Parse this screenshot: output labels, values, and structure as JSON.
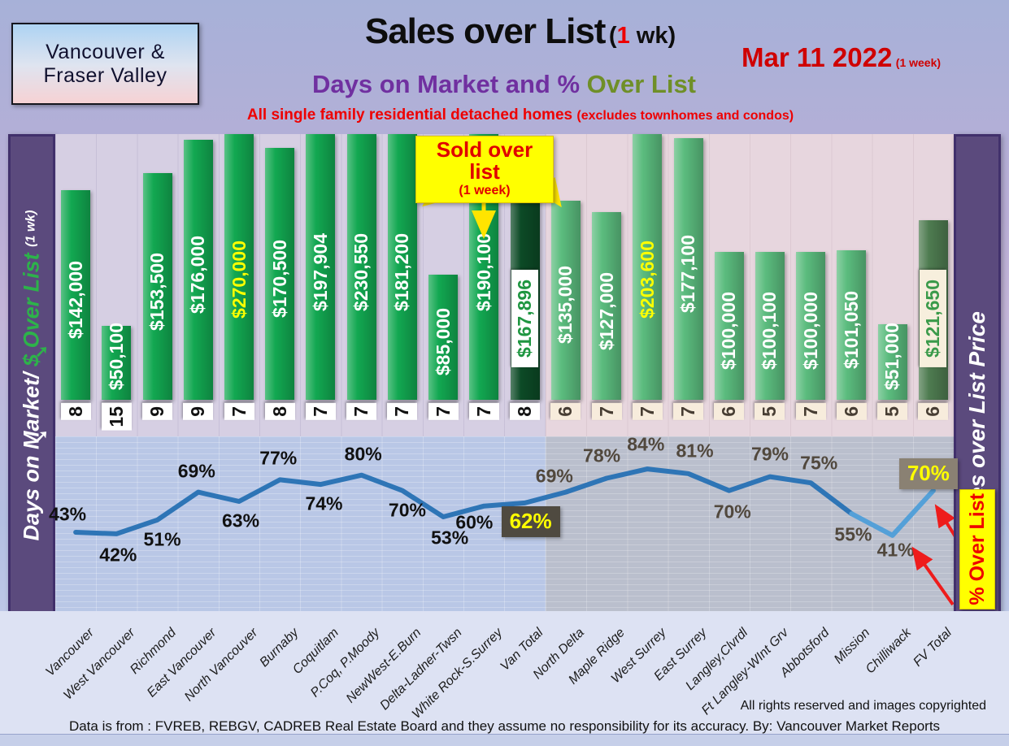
{
  "header": {
    "region_badge": {
      "line1": "Vancouver &",
      "line2": "Fraser Valley"
    },
    "title": {
      "main": "Sales over List",
      "paren_open": "(",
      "red_num": "1",
      "paren_rest": " wk)"
    },
    "date": {
      "main": "Mar 11  2022",
      "note": "(1 week)"
    },
    "subtitle": {
      "purple": "Days on Market and % ",
      "olive": "Over List"
    },
    "tagline": {
      "main": "All single family residential detached homes ",
      "note": "(excludes townhomes and condos)"
    }
  },
  "left_axis": {
    "label_white": "Days on Market/ ",
    "label_green": "$ Over List ",
    "label_note": "(1 wk)"
  },
  "right_axis": {
    "label": "Sales over List Price",
    "pct_box": "% Over List"
  },
  "callout": {
    "line1": "Sold over list",
    "line2": "(1 week)"
  },
  "footer": {
    "rights": "All rights reserved and  images copyrighted",
    "source": "Data is from : FVREB, REBGV, CADREB Real Estate Board and they assume no responsibility for its accuracy. By: Vancouver Market Reports"
  },
  "chart_data": {
    "type": "bar",
    "title": "Sales over List (1 wk) - Days on Market and % Over List",
    "categories": [
      "Vancouver",
      "West Vancouver",
      "Richmond",
      "East Vancouver",
      "North Vancouver",
      "Burnaby",
      "Coquitlam",
      "P.Coq, P.Moody",
      "NewWest-E.Burn",
      "Delta-Ladner-Twsn",
      "White Rock-S.Surrey",
      "Van Total",
      "North Delta",
      "Maple Ridge",
      "West Surrey",
      "East Surrey",
      "Langley,Clvrdl",
      "Ft Langley-WInt Grv",
      "Abbotsford",
      "Mission",
      "Chilliwack",
      "FV Total"
    ],
    "series": [
      {
        "name": "$ Over List (1 wk)",
        "type": "bar",
        "values": [
          142000,
          50100,
          153500,
          176000,
          270000,
          170500,
          197904,
          230550,
          181200,
          85000,
          190100,
          167896,
          135000,
          127000,
          203600,
          177100,
          100000,
          100100,
          100000,
          101050,
          51000,
          121650
        ],
        "labels": [
          "$142,000",
          "$50,100",
          "$153,500",
          "$176,000",
          "$270,000",
          "$170,500",
          "$197,904",
          "$230,550",
          "$181,200",
          "$85,000",
          "$190,100",
          "$167,896",
          "$135,000",
          "$127,000",
          "$203,600",
          "$177,100",
          "$100,000",
          "$100,100",
          "$100,000",
          "$101,050",
          "$51,000",
          "$121,650"
        ]
      },
      {
        "name": "Days on Market",
        "type": "value_row",
        "values": [
          8,
          15,
          9,
          9,
          7,
          8,
          7,
          7,
          7,
          7,
          7,
          8,
          6,
          7,
          7,
          7,
          6,
          5,
          7,
          6,
          5,
          6
        ]
      },
      {
        "name": "% Over List",
        "type": "line",
        "values": [
          43,
          42,
          51,
          69,
          63,
          77,
          74,
          80,
          70,
          53,
          60,
          62,
          69,
          78,
          84,
          81,
          70,
          79,
          75,
          55,
          41,
          70
        ],
        "labels": [
          "43%",
          "42%",
          "51%",
          "69%",
          "63%",
          "77%",
          "74%",
          "80%",
          "70%",
          "53%",
          "60%",
          "62%",
          "69%",
          "78%",
          "84%",
          "81%",
          "70%",
          "79%",
          "75%",
          "55%",
          "41%",
          "70%"
        ]
      }
    ],
    "ylim": [
      0,
      180000
    ],
    "grid": true,
    "legend_position": "none",
    "highlight": {
      "yellow_bar_labels": [
        4,
        14
      ],
      "van_total_index": 11,
      "fv_total_index": 21,
      "region_split_index": 12,
      "boxed_pct": [
        11,
        21
      ]
    }
  },
  "colors": {
    "bar_gv": "#12a851",
    "bar_fv": "#5bbc7e",
    "bar_total_gv": "#0c4a26",
    "bar_total_fv": "#4e7b50",
    "line": "#2e75b6",
    "line_light": "#54a0d8",
    "accent_red": "#ee0000",
    "accent_yellow": "#ffff00",
    "purple": "#7030a0",
    "olive": "#6f8f28",
    "sidebar_purple": "#5b4a7d",
    "pct_box_van": "#4f4a40",
    "pct_box_fv": "#8a8173"
  }
}
